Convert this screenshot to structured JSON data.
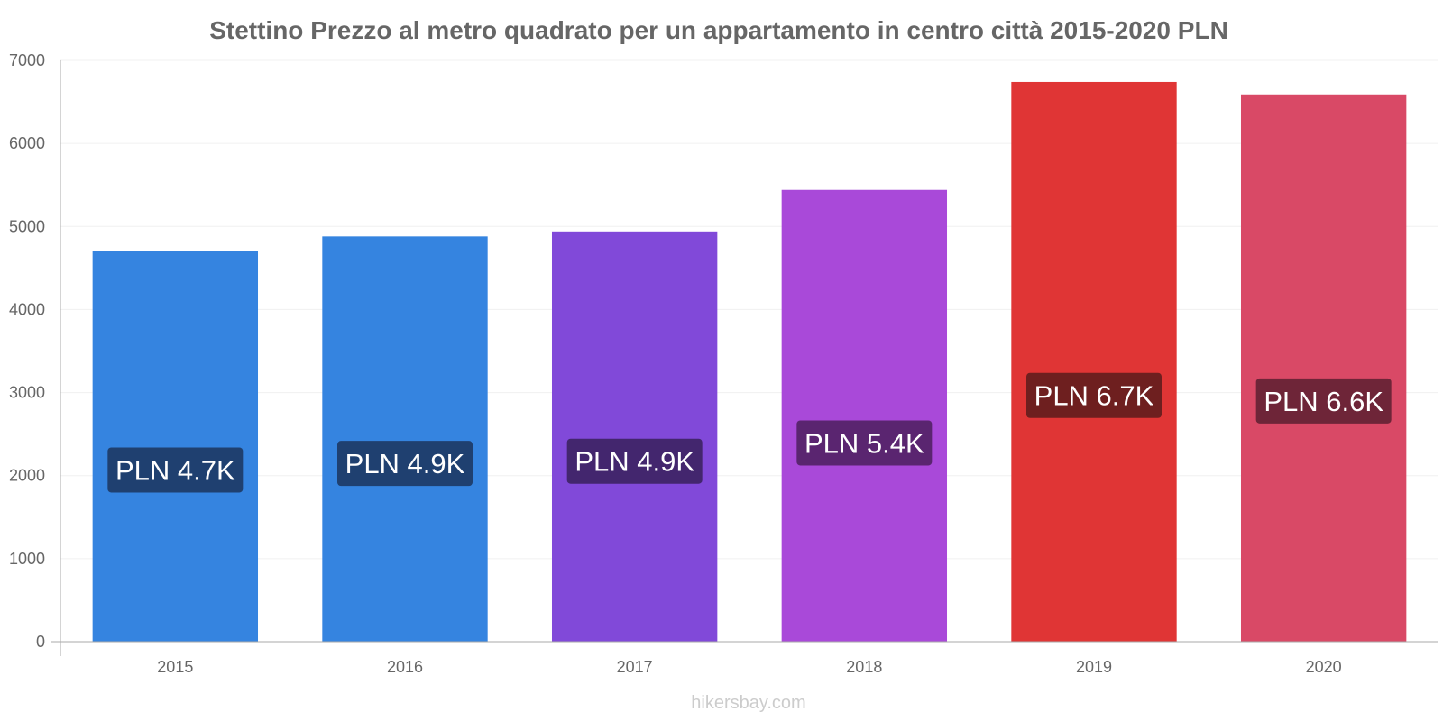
{
  "chart_data": {
    "type": "bar",
    "title": "Stettino Prezzo al metro quadrato per un appartamento in centro città 2015-2020 PLN",
    "categories": [
      "2015",
      "2016",
      "2017",
      "2018",
      "2019",
      "2020"
    ],
    "values": [
      4700,
      4880,
      4940,
      5440,
      6740,
      6590
    ],
    "data_labels": [
      "PLN 4.7K",
      "PLN 4.9K",
      "PLN 4.9K",
      "PLN 5.4K",
      "PLN 6.7K",
      "PLN 6.6K"
    ],
    "bar_colors": [
      "#3584e0",
      "#3584e0",
      "#8149d9",
      "#a949d9",
      "#e03535",
      "#d94966"
    ],
    "label_colors": [
      "#1f4070",
      "#1f4070",
      "#43266e",
      "#5a2570",
      "#6e1f1f",
      "#6e2538"
    ],
    "ylim": [
      0,
      7000
    ],
    "yticks": [
      0,
      1000,
      2000,
      3000,
      4000,
      5000,
      6000,
      7000
    ],
    "grid": true,
    "xlabel": "",
    "ylabel": ""
  },
  "watermark": "hikersbay.com"
}
